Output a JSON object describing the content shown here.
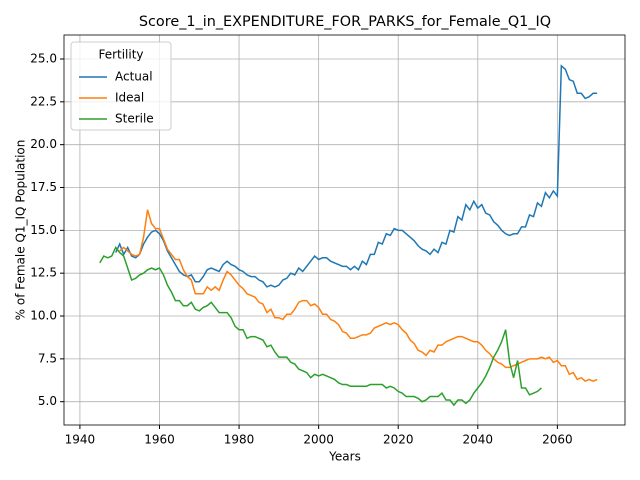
{
  "chart_data": {
    "type": "line",
    "title": "Score_1_in_EXPENDITURE_FOR_PARKS_for_Female_Q1_IQ",
    "xlabel": "Years",
    "ylabel": "% of Female Q1_IQ Population",
    "legend_title": "Fertility",
    "legend": "upper left",
    "grid": true,
    "xlim": [
      1936,
      2077
    ],
    "xticks": [
      1940,
      1960,
      1980,
      2000,
      2020,
      2040,
      2060
    ],
    "ylim": [
      3.64,
      26.4
    ],
    "yticks": [
      {
        "value": 5,
        "label": "5.0"
      },
      {
        "value": 7.5,
        "label": "7.5"
      },
      {
        "value": 10,
        "label": "10.0"
      },
      {
        "value": 12.5,
        "label": "12.5"
      },
      {
        "value": 15,
        "label": "15.0"
      },
      {
        "value": 17.5,
        "label": "17.5"
      },
      {
        "value": 20,
        "label": "20.0"
      },
      {
        "value": 22.5,
        "label": "22.5"
      },
      {
        "value": 25,
        "label": "25.0"
      }
    ],
    "x": [
      1945,
      1946,
      1947,
      1948,
      1949,
      1950,
      1951,
      1952,
      1953,
      1954,
      1955,
      1956,
      1957,
      1958,
      1959,
      1960,
      1961,
      1962,
      1963,
      1964,
      1965,
      1966,
      1967,
      1968,
      1969,
      1970,
      1971,
      1972,
      1973,
      1974,
      1975,
      1976,
      1977,
      1978,
      1979,
      1980,
      1981,
      1982,
      1983,
      1984,
      1985,
      1986,
      1987,
      1988,
      1989,
      1990,
      1991,
      1992,
      1993,
      1994,
      1995,
      1996,
      1997,
      1998,
      1999,
      2000,
      2001,
      2002,
      2003,
      2004,
      2005,
      2006,
      2007,
      2008,
      2009,
      2010,
      2011,
      2012,
      2013,
      2014,
      2015,
      2016,
      2017,
      2018,
      2019,
      2020,
      2021,
      2022,
      2023,
      2024,
      2025,
      2026,
      2027,
      2028,
      2029,
      2030,
      2031,
      2032,
      2033,
      2034,
      2035,
      2036,
      2037,
      2038,
      2039,
      2040,
      2041,
      2042,
      2043,
      2044,
      2045,
      2046,
      2047,
      2048,
      2049,
      2050,
      2051,
      2052,
      2053,
      2054,
      2055,
      2056,
      2057,
      2058,
      2059,
      2060,
      2061,
      2062,
      2063,
      2064,
      2065,
      2066,
      2067,
      2068,
      2069,
      2070
    ],
    "series": [
      {
        "name": "Actual",
        "color": "#1f77b4",
        "values": [
          null,
          null,
          null,
          null,
          13.7,
          14.2,
          13.6,
          14.0,
          13.5,
          13.4,
          13.6,
          14.2,
          14.6,
          14.9,
          15.0,
          14.8,
          14.4,
          13.8,
          13.4,
          13.0,
          12.6,
          12.4,
          12.3,
          12.4,
          12.0,
          12.0,
          12.3,
          12.7,
          12.8,
          12.7,
          12.6,
          13.0,
          13.2,
          13.0,
          12.9,
          12.7,
          12.6,
          12.4,
          12.3,
          12.3,
          12.1,
          12.0,
          11.7,
          11.8,
          11.7,
          11.8,
          12.1,
          12.2,
          12.5,
          12.4,
          12.8,
          12.6,
          12.9,
          13.2,
          13.5,
          13.3,
          13.4,
          13.4,
          13.2,
          13.1,
          13.0,
          12.9,
          12.9,
          12.7,
          12.9,
          12.7,
          13.2,
          13.0,
          13.6,
          13.6,
          14.3,
          14.2,
          14.8,
          14.7,
          15.1,
          15.0,
          15.0,
          14.8,
          14.6,
          14.4,
          14.1,
          13.9,
          13.8,
          13.6,
          13.9,
          13.7,
          14.3,
          14.2,
          15.0,
          14.9,
          15.8,
          15.6,
          16.5,
          16.2,
          16.7,
          16.3,
          16.5,
          16.0,
          15.9,
          15.5,
          15.3,
          15.0,
          14.8,
          14.7,
          14.8,
          14.8,
          15.2,
          15.2,
          15.9,
          15.8,
          16.6,
          16.4,
          17.2,
          16.9,
          17.3,
          17.0,
          24.6,
          24.4,
          23.8,
          23.7,
          23.0,
          23.0,
          22.7,
          22.8,
          23.0,
          23.0
        ]
      },
      {
        "name": "Ideal",
        "color": "#ff7f0e",
        "values": [
          null,
          null,
          null,
          null,
          null,
          13.8,
          14.0,
          13.8,
          13.6,
          13.5,
          13.6,
          14.6,
          16.2,
          15.4,
          15.1,
          15.1,
          14.5,
          13.9,
          13.6,
          13.3,
          13.3,
          12.7,
          12.3,
          12.1,
          11.3,
          11.3,
          11.3,
          11.7,
          11.5,
          11.7,
          11.5,
          12.1,
          12.6,
          12.4,
          12.1,
          11.8,
          11.6,
          11.3,
          11.2,
          11.1,
          10.8,
          10.7,
          10.2,
          10.4,
          9.9,
          9.9,
          9.8,
          10.1,
          10.1,
          10.4,
          10.8,
          10.9,
          10.9,
          10.6,
          10.7,
          10.5,
          10.1,
          10.1,
          9.8,
          9.7,
          9.5,
          9.1,
          9.0,
          8.7,
          8.7,
          8.8,
          8.9,
          8.9,
          9.0,
          9.3,
          9.4,
          9.5,
          9.6,
          9.5,
          9.6,
          9.5,
          9.2,
          9.0,
          8.6,
          8.4,
          8.0,
          7.9,
          7.7,
          8.0,
          7.9,
          8.3,
          8.3,
          8.5,
          8.6,
          8.7,
          8.8,
          8.8,
          8.7,
          8.6,
          8.5,
          8.5,
          8.3,
          8.0,
          7.8,
          7.5,
          7.3,
          7.2,
          7.0,
          7.0,
          7.1,
          7.2,
          7.3,
          7.4,
          7.5,
          7.5,
          7.5,
          7.6,
          7.5,
          7.6,
          7.3,
          7.4,
          7.1,
          7.1,
          6.6,
          6.7,
          6.3,
          6.4,
          6.2,
          6.3,
          6.2,
          6.3
        ]
      },
      {
        "name": "Sterile",
        "color": "#2ca02c",
        "values": [
          13.1,
          13.5,
          13.4,
          13.5,
          14.0,
          13.7,
          13.5,
          12.8,
          12.1,
          12.2,
          12.4,
          12.5,
          12.7,
          12.8,
          12.7,
          12.8,
          12.4,
          11.8,
          11.4,
          10.9,
          10.9,
          10.6,
          10.6,
          10.8,
          10.4,
          10.3,
          10.5,
          10.6,
          10.8,
          10.5,
          10.2,
          10.2,
          10.2,
          9.9,
          9.4,
          9.2,
          9.2,
          8.7,
          8.8,
          8.8,
          8.7,
          8.6,
          8.2,
          8.3,
          7.9,
          7.6,
          7.6,
          7.6,
          7.3,
          7.2,
          6.9,
          6.8,
          6.7,
          6.4,
          6.6,
          6.5,
          6.6,
          6.5,
          6.4,
          6.3,
          6.1,
          6.0,
          6.0,
          5.9,
          5.9,
          5.9,
          5.9,
          5.9,
          6.0,
          6.0,
          6.0,
          6.0,
          5.8,
          5.9,
          5.8,
          5.6,
          5.5,
          5.3,
          5.3,
          5.3,
          5.2,
          5.0,
          5.1,
          5.3,
          5.3,
          5.3,
          5.5,
          5.1,
          5.1,
          4.8,
          5.1,
          5.1,
          4.9,
          5.1,
          5.5,
          5.8,
          6.1,
          6.5,
          7.0,
          7.6,
          8.0,
          8.5,
          9.2,
          7.3,
          6.4,
          7.4,
          5.8,
          5.8,
          5.4,
          5.5,
          5.6,
          5.8,
          null,
          null,
          null,
          null,
          null,
          null,
          null,
          null,
          null,
          null,
          null,
          null,
          null,
          null
        ]
      }
    ]
  }
}
